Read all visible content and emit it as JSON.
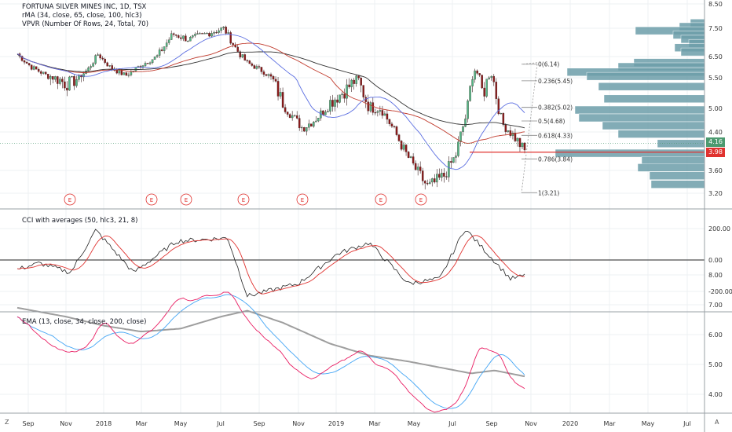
{
  "header": {
    "symbol_line": "FORTUNA SILVER MINES INC, 1D, TSX",
    "indicator_rma": "rMA (34, close, 65, close, 100, hlc3)",
    "indicator_vpvr": "VPVR (Number Of Rows, 24, Total, 70)"
  },
  "panes": {
    "cci_label": "CCI with averages (50, hlc3, 21, 8)",
    "ema_label": "EMA (13, close, 34, close, 200, close)"
  },
  "price_axis": {
    "ticks": [
      "8.50",
      "7.50",
      "6.50",
      "5.50",
      "5.00",
      "4.40",
      "3.60",
      "3.20"
    ],
    "badge_current": "4.16",
    "badge_last": "3.98",
    "badge_current_color": "#4c9a70",
    "badge_last_color": "#e0322f"
  },
  "cci_axis": {
    "ticks": [
      "200.00",
      "0.00",
      "-200.00"
    ]
  },
  "ema_axis": {
    "ticks": [
      "8.00",
      "7.00",
      "6.00",
      "5.00",
      "4.00"
    ]
  },
  "time_axis": {
    "labels": [
      "Sep",
      "Nov",
      "2018",
      "Mar",
      "May",
      "Jul",
      "Sep",
      "Nov",
      "2019",
      "Mar",
      "May",
      "Jul",
      "Sep",
      "Nov",
      "2020",
      "Mar",
      "May",
      "Jul"
    ],
    "corner_left": "Z",
    "corner_right": "A"
  },
  "earnings_marker": "E",
  "fib_levels": [
    {
      "label": "0(6.14)",
      "value": 6.14
    },
    {
      "label": "0.236(5.45)",
      "value": 5.45
    },
    {
      "label": "0.382(5.02)",
      "value": 5.02
    },
    {
      "label": "0.5(4.68)",
      "value": 4.68
    },
    {
      "label": "0.618(4.33)",
      "value": 4.33
    },
    {
      "label": "0.786(3.84)",
      "value": 3.84
    },
    {
      "label": "1(3.21)",
      "value": 3.21
    }
  ],
  "colors": {
    "up": "#53b987",
    "down": "#8b1a1a",
    "candle_outline": "#3a2020",
    "rma_black": "#333333",
    "rma_red": "#c0392b",
    "rma_blue": "#5b6ee1",
    "vpvr": "#6d9eaa",
    "grid": "#eef0f3",
    "support_line": "#e0322f"
  },
  "chart_data": [
    {
      "type": "line",
      "title": "FORTUNA SILVER MINES INC, 1D, TSX",
      "x": [
        "Sep",
        "Nov",
        "2018",
        "Mar",
        "May",
        "Jul",
        "Sep",
        "Nov",
        "2019",
        "Mar",
        "May",
        "Jul",
        "Sep",
        "Nov"
      ],
      "series": [
        {
          "name": "close",
          "values": [
            5.9,
            5.4,
            6.3,
            5.9,
            7.3,
            7.6,
            6.0,
            4.4,
            4.9,
            5.1,
            3.4,
            4.0,
            5.3,
            4.0
          ]
        }
      ],
      "ylim": [
        3.2,
        8.5
      ],
      "support_level": 3.98,
      "current_level": 4.16,
      "earnings_markers": [
        "Nov",
        "Mar",
        "Apr",
        "Aug",
        "Nov",
        "Mar",
        "May"
      ]
    },
    {
      "type": "line",
      "title": "CCI with averages (50, hlc3, 21, 8)",
      "x": [
        "Sep",
        "Nov",
        "2018",
        "Mar",
        "May",
        "Jul",
        "Sep",
        "Nov",
        "2019",
        "Mar",
        "May",
        "Jul",
        "Sep",
        "Nov"
      ],
      "series": [
        {
          "name": "CCI",
          "values": [
            -60,
            -40,
            190,
            -10,
            120,
            170,
            -220,
            -120,
            -60,
            130,
            -80,
            20,
            210,
            -140
          ]
        }
      ],
      "ylim": [
        -300,
        300
      ]
    },
    {
      "type": "line",
      "title": "EMA (13, close, 34, close, 200, close)",
      "x": [
        "Sep",
        "Nov",
        "2018",
        "Mar",
        "May",
        "Jul",
        "Sep",
        "Nov",
        "2019",
        "Mar",
        "May",
        "Jul",
        "Sep",
        "Nov"
      ],
      "series": [
        {
          "name": "EMA 13",
          "values": [
            6.0,
            5.6,
            6.2,
            5.8,
            7.0,
            7.5,
            5.8,
            4.3,
            4.9,
            4.9,
            3.5,
            4.1,
            5.2,
            4.1
          ]
        },
        {
          "name": "EMA 34",
          "values": [
            5.9,
            5.8,
            6.2,
            5.9,
            6.9,
            7.3,
            6.2,
            4.6,
            4.8,
            4.9,
            3.8,
            3.9,
            5.0,
            4.3
          ]
        },
        {
          "name": "EMA 200",
          "values": [
            6.9,
            6.5,
            6.2,
            6.1,
            6.4,
            6.8,
            6.4,
            5.7,
            5.3,
            5.1,
            4.9,
            4.7,
            4.8,
            4.6
          ]
        }
      ],
      "ylim": [
        3.5,
        8.0
      ]
    }
  ]
}
